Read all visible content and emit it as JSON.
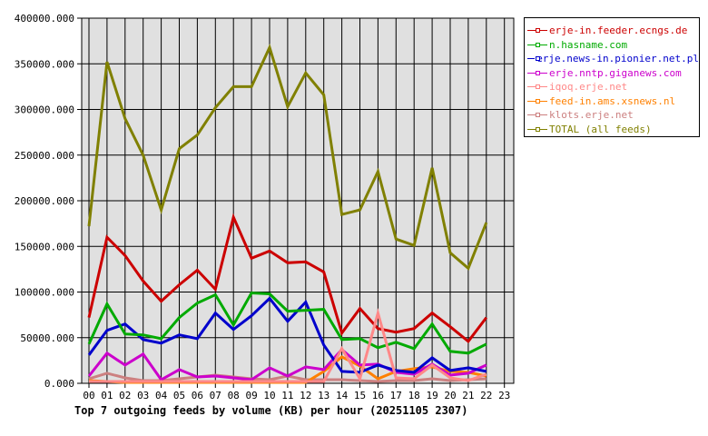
{
  "chart_data": {
    "type": "line",
    "title": "Top 7 outgoing feeds by volume (KB) per hour (20251105 2307)",
    "xlabel": "",
    "ylabel": "",
    "ylim": [
      0,
      400000
    ],
    "grid": true,
    "legend_position": "right",
    "x": [
      "00",
      "01",
      "02",
      "03",
      "04",
      "05",
      "06",
      "07",
      "08",
      "09",
      "10",
      "11",
      "12",
      "13",
      "14",
      "15",
      "16",
      "17",
      "18",
      "19",
      "20",
      "21",
      "22",
      "23"
    ],
    "y_ticks": [
      "0.000",
      "50000.000",
      "100000.000",
      "150000.000",
      "200000.000",
      "250000.000",
      "300000.000",
      "350000.000",
      "400000.000"
    ],
    "series": [
      {
        "name": "erje-in.feeder.ecngs.de",
        "color": "#cc0000",
        "values": [
          72000,
          160000,
          140000,
          112000,
          90000,
          108000,
          124000,
          103000,
          182000,
          137000,
          145000,
          132000,
          133000,
          122000,
          55000,
          82000,
          60000,
          56000,
          60000,
          77000,
          62000,
          46000,
          72000
        ]
      },
      {
        "name": "n.hasname.com",
        "color": "#00aa00",
        "values": [
          43000,
          87000,
          54000,
          53000,
          49000,
          72000,
          88000,
          97000,
          64000,
          99000,
          98000,
          79000,
          80000,
          81000,
          48000,
          49000,
          39000,
          45000,
          38000,
          65000,
          35000,
          33000,
          43000
        ]
      },
      {
        "name": "erje.news-in.pionier.net.pl",
        "color": "#0000cc",
        "values": [
          31000,
          58000,
          65000,
          48000,
          44000,
          53000,
          49000,
          77000,
          59000,
          74000,
          93000,
          68000,
          89000,
          42000,
          13000,
          12000,
          20000,
          14000,
          12000,
          28000,
          14000,
          17000,
          13000
        ]
      },
      {
        "name": "erje.nntp.giganews.com",
        "color": "#cc00cc",
        "values": [
          8000,
          33000,
          20000,
          32000,
          4000,
          15000,
          7000,
          8000,
          6000,
          4000,
          17000,
          8000,
          18000,
          15000,
          37000,
          20000,
          21000,
          12000,
          10000,
          21000,
          9000,
          11000,
          20000
        ]
      },
      {
        "name": "iqoq.erje.net",
        "color": "#ff8888",
        "values": [
          2000,
          2000,
          2000,
          2000,
          2000,
          2000,
          2000,
          2000,
          2000,
          2000,
          2000,
          2000,
          2000,
          2000,
          38000,
          5000,
          77000,
          6000,
          5000,
          20000,
          6000,
          3000,
          10000
        ]
      },
      {
        "name": "feed-in.ams.xsnews.nl",
        "color": "#ff8000",
        "values": [
          3000,
          2000,
          1000,
          1000,
          1000,
          1000,
          1000,
          1000,
          1000,
          1000,
          1000,
          1000,
          1000,
          13000,
          29000,
          19000,
          5000,
          13000,
          16000,
          18000,
          13000,
          12000,
          8000
        ]
      },
      {
        "name": "klots.erje.net",
        "color": "#cc8080",
        "values": [
          5000,
          11000,
          6000,
          3000,
          3000,
          5000,
          7000,
          9000,
          7000,
          5000,
          4000,
          8000,
          4000,
          4000,
          4000,
          3000,
          2000,
          3000,
          3000,
          5000,
          3000,
          4000,
          5000
        ]
      },
      {
        "name": "TOTAL (all feeds)",
        "color": "#808000",
        "values": [
          172000,
          352000,
          290000,
          250000,
          190000,
          257000,
          272000,
          302000,
          325000,
          325000,
          368000,
          303000,
          340000,
          316000,
          185000,
          190000,
          232000,
          158000,
          151000,
          236000,
          143000,
          126000,
          176000
        ]
      }
    ]
  },
  "caption": "Top 7 outgoing feeds by volume (KB) per hour (20251105 2307)",
  "colors": {
    "plot_bg": "#e0e0e0",
    "grid": "#000000"
  }
}
